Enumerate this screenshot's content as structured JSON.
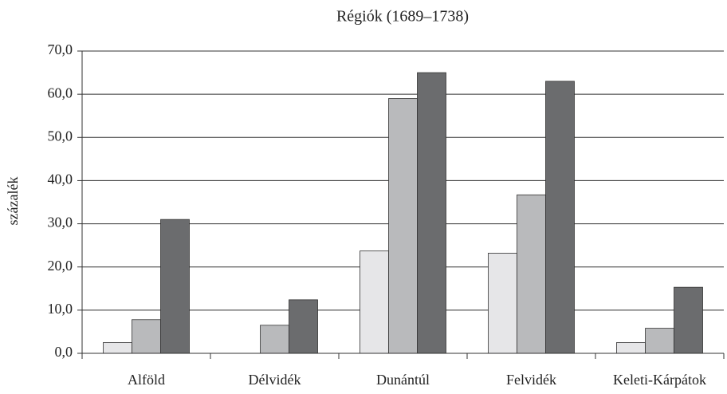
{
  "chart_data": {
    "type": "bar",
    "title": "Régiók (1689–1738)",
    "y_label": "százalék",
    "categories": [
      "Alföld",
      "Délvidék",
      "Dunántúl",
      "Felvidék",
      "Keleti-Kárpátok"
    ],
    "series": [
      {
        "color": "#e6e6e8",
        "values": [
          2.5,
          null,
          23.7,
          23.2,
          2.5
        ]
      },
      {
        "color": "#b9babc",
        "values": [
          7.8,
          6.5,
          59,
          36.7,
          5.8
        ]
      },
      {
        "color": "#6b6c6e",
        "values": [
          31,
          12.4,
          65,
          63,
          15.3
        ]
      }
    ],
    "ylim": [
      0,
      70
    ],
    "yticks": [
      {
        "value": 0,
        "label": "0,0"
      },
      {
        "value": 10,
        "label": "10,0"
      },
      {
        "value": 20,
        "label": "20,0"
      },
      {
        "value": 30,
        "label": "30,0"
      },
      {
        "value": 40,
        "label": "40,0"
      },
      {
        "value": 50,
        "label": "50,0"
      },
      {
        "value": 60,
        "label": "60,0"
      },
      {
        "value": 70,
        "label": "70,0"
      }
    ],
    "grid": true
  }
}
